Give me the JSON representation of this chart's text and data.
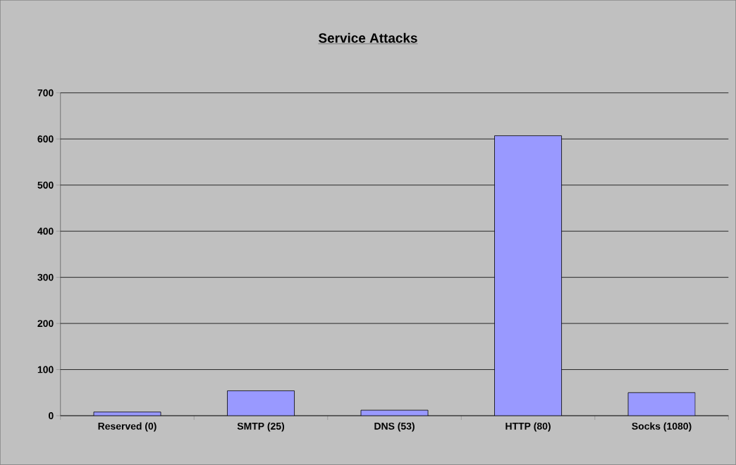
{
  "chart_data": {
    "type": "bar",
    "title": "Service Attacks",
    "categories": [
      "Reserved (0)",
      "SMTP (25)",
      "DNS (53)",
      "HTTP (80)",
      "Socks (1080)"
    ],
    "values": [
      8,
      54,
      12,
      607,
      50
    ],
    "color": "#9999ff",
    "ylim": [
      0,
      700
    ],
    "yticks": [
      0,
      100,
      200,
      300,
      400,
      500,
      600,
      700
    ],
    "grid": "y"
  }
}
